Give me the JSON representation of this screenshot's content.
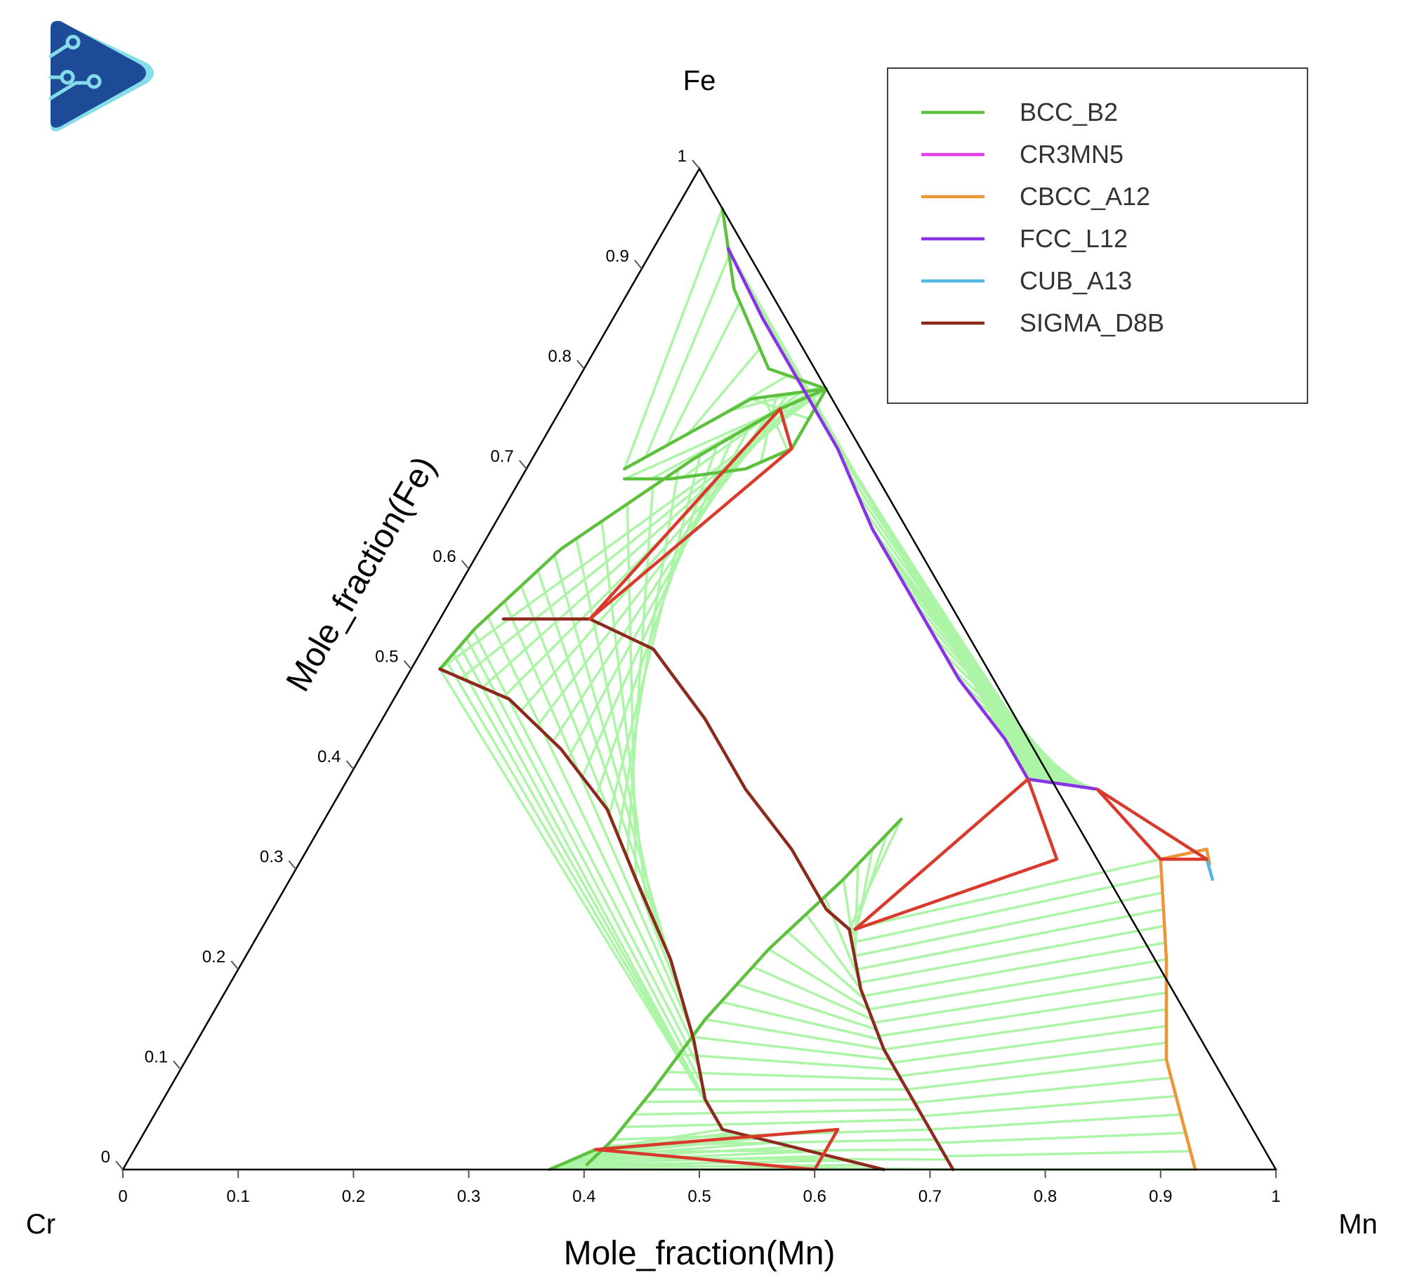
{
  "colors": {
    "BCC_B2": "#5ec13d",
    "CR3MN5": "#e03fe8",
    "CBCC_A12": "#ef9538",
    "FCC_L12": "#8a32e6",
    "CUB_A13": "#52b6df",
    "SIGMA_D8B": "#8c2a1e",
    "tie_region": "#d83a2c",
    "tie_line": "#adf5a6"
  },
  "logo": {
    "name": "play-circuit-logo"
  },
  "chart_data": {
    "type": "ternary",
    "corners": {
      "top": "Fe",
      "left": "Cr",
      "right": "Mn"
    },
    "xlabel": "Mole_fraction(Mn)",
    "ylabel": "Mole_fraction(Fe)",
    "bottom_ticks": [
      "0",
      "0.1",
      "0.2",
      "0.3",
      "0.4",
      "0.5",
      "0.6",
      "0.7",
      "0.8",
      "0.9",
      "1"
    ],
    "left_ticks": [
      "0",
      "0.1",
      "0.2",
      "0.3",
      "0.4",
      "0.5",
      "0.6",
      "0.7",
      "0.8",
      "0.9",
      "1"
    ],
    "legend_position": "top-right",
    "legend": [
      "BCC_B2",
      "CR3MN5",
      "CBCC_A12",
      "FCC_L12",
      "CUB_A13",
      "SIGMA_D8B"
    ],
    "boundaries": [
      {
        "phase": "BCC_B2",
        "points": [
          [
            0.22,
            0.78
          ],
          [
            0.19,
            0.76
          ],
          [
            0.14,
            0.71
          ],
          [
            0.07,
            0.62
          ],
          [
            0.035,
            0.54
          ],
          [
            0.025,
            0.5
          ]
        ]
      },
      {
        "phase": "BCC_B2",
        "points": [
          [
            0.04,
            0.96
          ],
          [
            0.09,
            0.88
          ],
          [
            0.16,
            0.8
          ],
          [
            0.22,
            0.78
          ],
          [
            0.22,
            0.72
          ],
          [
            0.19,
            0.7
          ],
          [
            0.13,
            0.69
          ],
          [
            0.09,
            0.69
          ]
        ]
      },
      {
        "phase": "BCC_B2",
        "points": [
          [
            0.085,
            0.7
          ],
          [
            0.16,
            0.77
          ],
          [
            0.22,
            0.78
          ]
        ]
      },
      {
        "phase": "BCC_B2",
        "points": [
          [
            0.5,
            0.35
          ],
          [
            0.48,
            0.29
          ],
          [
            0.45,
            0.22
          ],
          [
            0.43,
            0.15
          ],
          [
            0.42,
            0.08
          ],
          [
            0.41,
            0.03
          ],
          [
            0.4,
            0.005
          ]
        ]
      },
      {
        "phase": "BCC_B2",
        "points": [
          [
            0.4,
            0.02
          ],
          [
            0.37,
            0.0
          ]
        ]
      },
      {
        "phase": "FCC_L12",
        "points": [
          [
            0.065,
            0.92
          ],
          [
            0.13,
            0.85
          ],
          [
            0.2,
            0.78
          ],
          [
            0.26,
            0.72
          ],
          [
            0.33,
            0.64
          ],
          [
            0.41,
            0.56
          ],
          [
            0.48,
            0.49
          ],
          [
            0.55,
            0.43
          ],
          [
            0.59,
            0.39
          ]
        ]
      },
      {
        "phase": "FCC_L12",
        "points": [
          [
            0.59,
            0.39
          ],
          [
            0.655,
            0.38
          ]
        ]
      },
      {
        "phase": "SIGMA_D8B",
        "points": [
          [
            0.055,
            0.55
          ],
          [
            0.13,
            0.55
          ],
          [
            0.2,
            0.52
          ],
          [
            0.28,
            0.45
          ],
          [
            0.35,
            0.38
          ],
          [
            0.42,
            0.32
          ],
          [
            0.48,
            0.26
          ],
          [
            0.51,
            0.24
          ]
        ]
      },
      {
        "phase": "SIGMA_D8B",
        "points": [
          [
            0.025,
            0.5
          ],
          [
            0.1,
            0.47
          ],
          [
            0.17,
            0.42
          ],
          [
            0.24,
            0.36
          ],
          [
            0.3,
            0.29
          ],
          [
            0.37,
            0.21
          ],
          [
            0.43,
            0.13
          ],
          [
            0.47,
            0.07
          ],
          [
            0.5,
            0.04
          ]
        ]
      },
      {
        "phase": "SIGMA_D8B",
        "points": [
          [
            0.5,
            0.04
          ],
          [
            0.54,
            0.03
          ],
          [
            0.6,
            0.015
          ],
          [
            0.66,
            0.0
          ]
        ]
      },
      {
        "phase": "SIGMA_D8B",
        "points": [
          [
            0.51,
            0.24
          ],
          [
            0.55,
            0.18
          ],
          [
            0.6,
            0.12
          ],
          [
            0.66,
            0.06
          ],
          [
            0.72,
            0.0
          ]
        ]
      },
      {
        "phase": "CBCC_A12",
        "points": [
          [
            0.745,
            0.31
          ],
          [
            0.78,
            0.32
          ],
          [
            0.79,
            0.305
          ]
        ]
      },
      {
        "phase": "CBCC_A12",
        "points": [
          [
            0.745,
            0.31
          ],
          [
            0.8,
            0.21
          ],
          [
            0.85,
            0.11
          ],
          [
            0.93,
            0.0
          ]
        ]
      },
      {
        "phase": "CUB_A13",
        "points": [
          [
            0.785,
            0.31
          ],
          [
            0.8,
            0.29
          ]
        ]
      }
    ],
    "tie_triangles": [
      {
        "points": [
          [
            0.19,
            0.76
          ],
          [
            0.22,
            0.72
          ],
          [
            0.13,
            0.55
          ]
        ]
      },
      {
        "points": [
          [
            0.59,
            0.39
          ],
          [
            0.515,
            0.24
          ],
          [
            0.655,
            0.31
          ]
        ]
      },
      {
        "points": [
          [
            0.655,
            0.38
          ],
          [
            0.785,
            0.31
          ],
          [
            0.745,
            0.31
          ]
        ]
      },
      {
        "points": [
          [
            0.4,
            0.02
          ],
          [
            0.6,
            0.04
          ],
          [
            0.6,
            0.0
          ]
        ]
      }
    ]
  }
}
